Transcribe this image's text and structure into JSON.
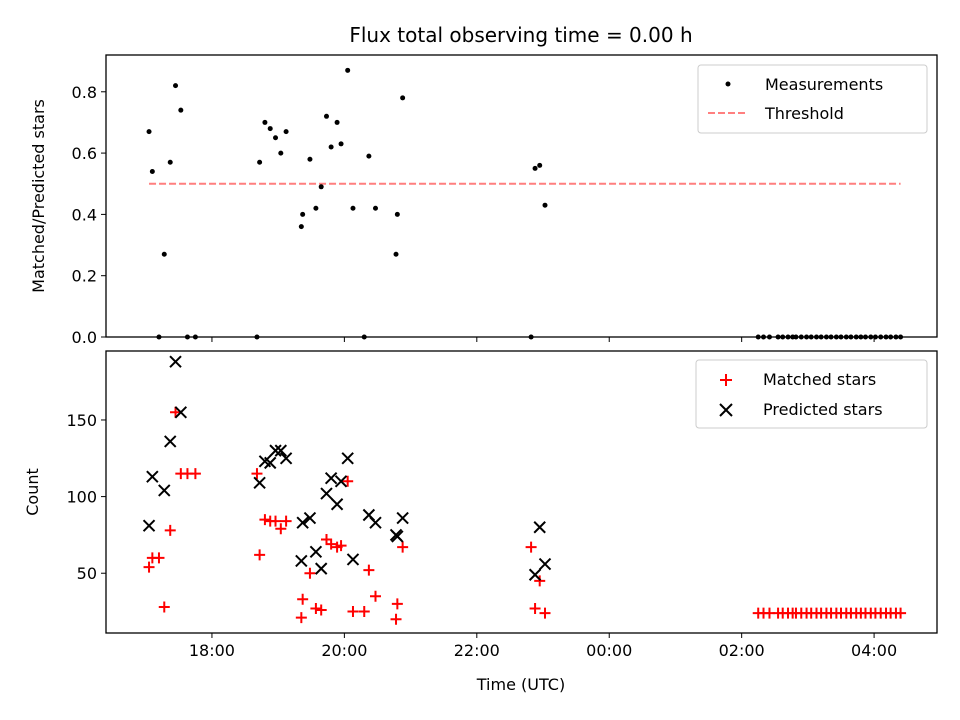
{
  "title": "Flux total observing time = 0.00 h",
  "colors": {
    "measurement": "#000000",
    "threshold": "#ff7f7f",
    "matched": "#ff0000",
    "predicted": "#000000"
  },
  "chart_data": [
    {
      "type": "scatter",
      "ylabel": "Matched/Predicted stars",
      "xlim": [
        16.4,
        28.95
      ],
      "ylim": [
        0,
        0.92
      ],
      "yticks": [
        0.0,
        0.2,
        0.4,
        0.6,
        0.8
      ],
      "ytick_labels": [
        "0.0",
        "0.2",
        "0.4",
        "0.6",
        "0.8"
      ],
      "legend": {
        "position": "upper right",
        "entries": [
          "Measurements",
          "Threshold"
        ]
      },
      "threshold": {
        "name": "Threshold",
        "x": [
          17.05,
          28.4
        ],
        "y": [
          0.5,
          0.5
        ]
      },
      "series": [
        {
          "name": "Measurements",
          "points": [
            [
              17.05,
              0.67
            ],
            [
              17.1,
              0.54
            ],
            [
              17.2,
              0.0
            ],
            [
              17.28,
              0.27
            ],
            [
              17.37,
              0.57
            ],
            [
              17.45,
              0.82
            ],
            [
              17.53,
              0.74
            ],
            [
              17.63,
              0.0
            ],
            [
              17.75,
              0.0
            ],
            [
              18.68,
              0.0
            ],
            [
              18.72,
              0.57
            ],
            [
              18.8,
              0.7
            ],
            [
              18.88,
              0.68
            ],
            [
              18.96,
              0.65
            ],
            [
              19.04,
              0.6
            ],
            [
              19.12,
              0.67
            ],
            [
              19.35,
              0.36
            ],
            [
              19.37,
              0.4
            ],
            [
              19.48,
              0.58
            ],
            [
              19.57,
              0.42
            ],
            [
              19.65,
              0.49
            ],
            [
              19.73,
              0.72
            ],
            [
              19.8,
              0.62
            ],
            [
              19.89,
              0.7
            ],
            [
              19.95,
              0.63
            ],
            [
              20.05,
              0.87
            ],
            [
              20.13,
              0.42
            ],
            [
              20.3,
              0.0
            ],
            [
              20.37,
              0.59
            ],
            [
              20.47,
              0.42
            ],
            [
              20.78,
              0.27
            ],
            [
              20.8,
              0.4
            ],
            [
              20.88,
              0.78
            ],
            [
              22.82,
              0.0
            ],
            [
              22.88,
              0.55
            ],
            [
              22.95,
              0.56
            ],
            [
              23.03,
              0.43
            ],
            [
              26.25,
              0.0
            ],
            [
              26.33,
              0.0
            ],
            [
              26.42,
              0.0
            ],
            [
              26.55,
              0.0
            ],
            [
              26.62,
              0.0
            ],
            [
              26.7,
              0.0
            ],
            [
              26.77,
              0.0
            ],
            [
              26.82,
              0.0
            ],
            [
              26.9,
              0.0
            ],
            [
              26.98,
              0.0
            ],
            [
              27.05,
              0.0
            ],
            [
              27.13,
              0.0
            ],
            [
              27.2,
              0.0
            ],
            [
              27.28,
              0.0
            ],
            [
              27.35,
              0.0
            ],
            [
              27.43,
              0.0
            ],
            [
              27.5,
              0.0
            ],
            [
              27.58,
              0.0
            ],
            [
              27.65,
              0.0
            ],
            [
              27.73,
              0.0
            ],
            [
              27.8,
              0.0
            ],
            [
              27.87,
              0.0
            ],
            [
              27.95,
              0.0
            ],
            [
              28.02,
              0.0
            ],
            [
              28.1,
              0.0
            ],
            [
              28.18,
              0.0
            ],
            [
              28.25,
              0.0
            ],
            [
              28.33,
              0.0
            ],
            [
              28.4,
              0.0
            ]
          ]
        }
      ]
    },
    {
      "type": "scatter",
      "xlabel": "Time (UTC)",
      "ylabel": "Count",
      "xlim": [
        16.4,
        28.95
      ],
      "ylim": [
        11,
        195
      ],
      "xticks": [
        18,
        20,
        22,
        24,
        26,
        28
      ],
      "xtick_labels": [
        "18:00",
        "20:00",
        "22:00",
        "00:00",
        "02:00",
        "04:00"
      ],
      "yticks": [
        50,
        100,
        150
      ],
      "ytick_labels": [
        "50",
        "100",
        "150"
      ],
      "legend": {
        "position": "upper right",
        "entries": [
          "Matched stars",
          "Predicted stars"
        ]
      },
      "series": [
        {
          "name": "Matched stars",
          "marker": "+",
          "points": [
            [
              17.05,
              54
            ],
            [
              17.1,
              60
            ],
            [
              17.2,
              60
            ],
            [
              17.28,
              28
            ],
            [
              17.37,
              78
            ],
            [
              17.45,
              155
            ],
            [
              17.53,
              115
            ],
            [
              17.63,
              115
            ],
            [
              17.75,
              115
            ],
            [
              18.68,
              115
            ],
            [
              18.72,
              62
            ],
            [
              18.8,
              85
            ],
            [
              18.88,
              84
            ],
            [
              18.96,
              84
            ],
            [
              19.04,
              79
            ],
            [
              19.12,
              84
            ],
            [
              19.35,
              21
            ],
            [
              19.37,
              33
            ],
            [
              19.48,
              50
            ],
            [
              19.57,
              27
            ],
            [
              19.65,
              26
            ],
            [
              19.73,
              72
            ],
            [
              19.8,
              69
            ],
            [
              19.89,
              67
            ],
            [
              19.95,
              68
            ],
            [
              20.05,
              110
            ],
            [
              20.13,
              25
            ],
            [
              20.3,
              25
            ],
            [
              20.37,
              52
            ],
            [
              20.47,
              35
            ],
            [
              20.78,
              20
            ],
            [
              20.8,
              30
            ],
            [
              20.88,
              67
            ],
            [
              22.82,
              67
            ],
            [
              22.88,
              27
            ],
            [
              22.95,
              45
            ],
            [
              23.03,
              24
            ],
            [
              26.25,
              24
            ],
            [
              26.33,
              24
            ],
            [
              26.42,
              24
            ],
            [
              26.55,
              24
            ],
            [
              26.62,
              24
            ],
            [
              26.7,
              24
            ],
            [
              26.77,
              24
            ],
            [
              26.82,
              24
            ],
            [
              26.9,
              24
            ],
            [
              26.98,
              24
            ],
            [
              27.05,
              24
            ],
            [
              27.13,
              24
            ],
            [
              27.2,
              24
            ],
            [
              27.28,
              24
            ],
            [
              27.35,
              24
            ],
            [
              27.43,
              24
            ],
            [
              27.5,
              24
            ],
            [
              27.58,
              24
            ],
            [
              27.65,
              24
            ],
            [
              27.73,
              24
            ],
            [
              27.8,
              24
            ],
            [
              27.87,
              24
            ],
            [
              27.95,
              24
            ],
            [
              28.02,
              24
            ],
            [
              28.1,
              24
            ],
            [
              28.18,
              24
            ],
            [
              28.25,
              24
            ],
            [
              28.33,
              24
            ],
            [
              28.4,
              24
            ]
          ]
        },
        {
          "name": "Predicted stars",
          "marker": "x",
          "points": [
            [
              17.05,
              81
            ],
            [
              17.1,
              113
            ],
            [
              17.28,
              104
            ],
            [
              17.37,
              136
            ],
            [
              17.45,
              188
            ],
            [
              17.53,
              155
            ],
            [
              18.72,
              109
            ],
            [
              18.8,
              123
            ],
            [
              18.88,
              122
            ],
            [
              18.96,
              130
            ],
            [
              19.04,
              130
            ],
            [
              19.12,
              125
            ],
            [
              19.35,
              58
            ],
            [
              19.37,
              83
            ],
            [
              19.48,
              86
            ],
            [
              19.57,
              64
            ],
            [
              19.65,
              53
            ],
            [
              19.73,
              102
            ],
            [
              19.8,
              112
            ],
            [
              19.89,
              95
            ],
            [
              19.95,
              110
            ],
            [
              20.05,
              125
            ],
            [
              20.13,
              59
            ],
            [
              20.37,
              88
            ],
            [
              20.47,
              83
            ],
            [
              20.78,
              75
            ],
            [
              20.8,
              74
            ],
            [
              20.88,
              86
            ],
            [
              22.88,
              49
            ],
            [
              22.95,
              80
            ],
            [
              23.03,
              56
            ]
          ]
        }
      ]
    }
  ]
}
